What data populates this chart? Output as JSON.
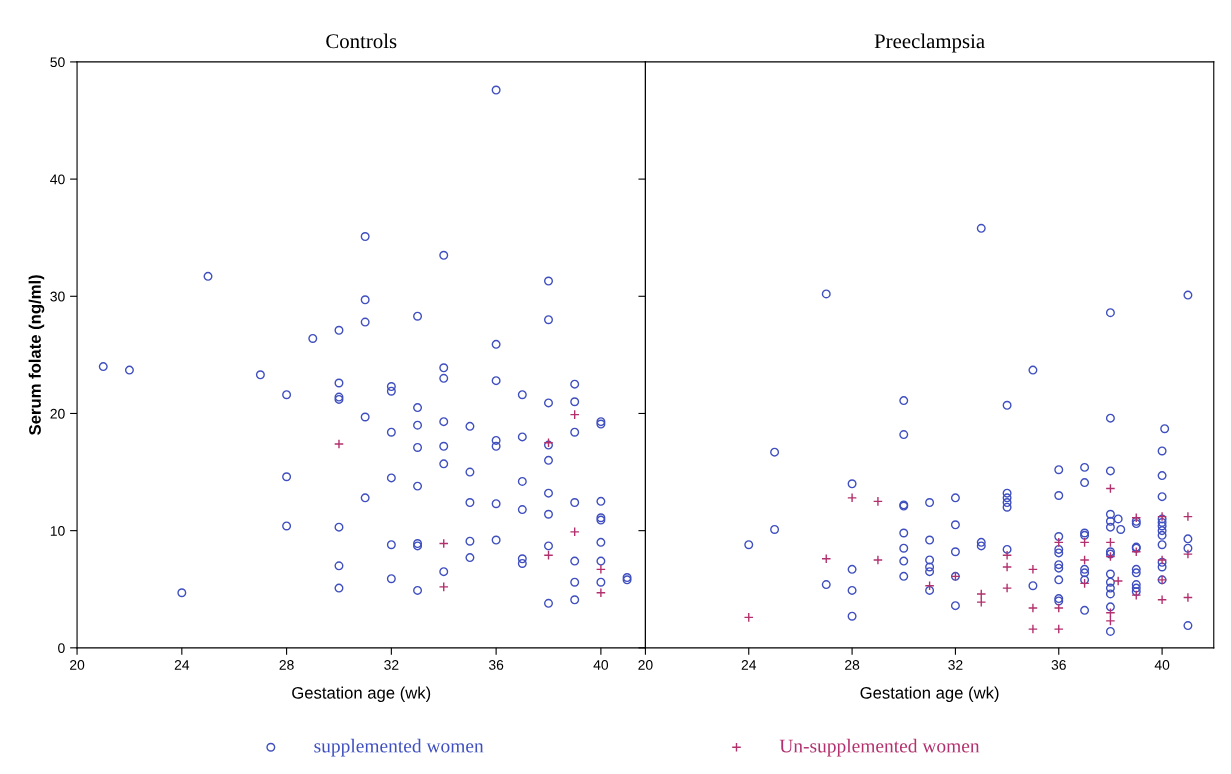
{
  "chart_data": [
    {
      "type": "scatter",
      "title": "Controls",
      "xlabel": "Gestation age (wk)",
      "ylabel": "Serum folate (ng/ml)",
      "xlim": [
        20,
        41.7
      ],
      "ylim": [
        0,
        50
      ],
      "xticks": [
        20,
        24,
        28,
        32,
        36,
        40
      ],
      "yticks": [
        0,
        10,
        20,
        30,
        40,
        50
      ],
      "grid": false,
      "legend": "bottom",
      "series": [
        {
          "name": "supplemented women",
          "color": "#3f4fbf",
          "marker": "circle",
          "x": [
            21,
            22,
            24,
            25,
            27,
            28,
            28,
            28,
            29,
            30,
            30,
            30,
            30,
            30,
            30,
            30,
            31,
            31,
            31,
            31,
            31,
            32,
            32,
            32,
            32,
            32,
            32,
            33,
            33,
            33,
            33,
            33,
            33,
            33,
            33,
            34,
            34,
            34,
            34,
            34,
            34,
            34,
            35,
            35,
            35,
            35,
            35,
            36,
            36,
            36,
            36,
            36,
            36,
            36,
            37,
            37,
            37,
            37,
            37,
            37,
            38,
            38,
            38,
            38,
            38,
            38,
            38,
            38,
            38,
            39,
            39,
            39,
            39,
            39,
            39,
            39,
            40,
            40,
            40,
            40,
            40,
            40,
            40,
            40,
            41,
            41
          ],
          "values": [
            24.0,
            23.7,
            4.7,
            31.7,
            23.3,
            21.6,
            14.6,
            10.4,
            26.4,
            27.1,
            22.6,
            21.4,
            21.2,
            10.3,
            7.0,
            5.1,
            35.1,
            29.7,
            27.8,
            19.7,
            12.8,
            22.3,
            21.9,
            18.4,
            14.5,
            8.8,
            5.9,
            28.3,
            20.5,
            19.0,
            17.1,
            13.8,
            8.9,
            8.7,
            4.9,
            33.5,
            23.9,
            23.0,
            19.3,
            17.2,
            15.7,
            6.5,
            18.9,
            15.0,
            12.4,
            9.1,
            7.7,
            47.6,
            25.9,
            22.8,
            17.7,
            17.2,
            12.3,
            9.2,
            21.6,
            18.0,
            14.2,
            11.8,
            7.6,
            7.2,
            31.3,
            28.0,
            20.9,
            17.3,
            16.0,
            13.2,
            11.4,
            8.7,
            3.8,
            22.5,
            21.0,
            18.4,
            12.4,
            7.4,
            5.6,
            4.1,
            19.3,
            19.1,
            12.5,
            11.1,
            10.9,
            9.0,
            7.4,
            5.6,
            6.0,
            5.8
          ]
        },
        {
          "name": "Un-supplemented women",
          "color": "#b3306e",
          "marker": "cross",
          "x": [
            30,
            34,
            34,
            38,
            38,
            39,
            39,
            40,
            40
          ],
          "values": [
            17.4,
            8.9,
            5.2,
            17.5,
            7.9,
            19.9,
            9.9,
            6.7,
            4.7
          ]
        }
      ]
    },
    {
      "type": "scatter",
      "title": "Preeclampsia",
      "xlabel": "Gestation age (wk)",
      "xlim": [
        20,
        42
      ],
      "ylim": [
        0,
        50
      ],
      "xticks": [
        20,
        24,
        28,
        32,
        36,
        40
      ],
      "yticks": [
        0,
        10,
        20,
        30,
        40
      ],
      "tick_labels": "x",
      "grid": false,
      "series": [
        {
          "name": "supplemented women",
          "color": "#3f4fbf",
          "marker": "circle",
          "x": [
            24,
            25,
            25,
            27,
            27,
            28,
            28,
            28,
            28,
            30,
            30,
            30,
            30,
            30,
            30,
            30,
            30,
            31,
            31,
            31,
            31,
            31,
            31,
            32,
            32,
            32,
            32,
            32,
            33,
            33,
            33,
            34,
            34,
            34,
            34,
            34,
            34,
            35,
            35,
            36,
            36,
            36,
            36,
            36,
            36,
            36,
            36,
            36,
            36,
            37,
            37,
            37,
            37,
            37,
            37,
            37,
            37,
            38,
            38,
            38,
            38,
            38,
            38,
            38,
            38,
            38,
            38,
            38,
            38,
            38,
            38,
            38.3,
            38.4,
            39,
            39,
            39,
            39,
            39,
            39,
            39,
            39,
            39,
            40.1,
            40,
            40,
            40,
            40,
            40,
            40,
            40,
            40,
            40,
            40,
            40,
            40,
            41,
            41,
            41,
            41
          ],
          "values": [
            8.8,
            16.7,
            10.1,
            30.2,
            5.4,
            14.0,
            6.7,
            4.9,
            2.7,
            21.1,
            18.2,
            12.2,
            12.1,
            9.8,
            8.5,
            7.4,
            6.1,
            12.4,
            9.2,
            7.5,
            6.9,
            6.5,
            4.9,
            12.8,
            10.5,
            8.2,
            6.1,
            3.6,
            35.8,
            9.0,
            8.7,
            20.7,
            13.2,
            12.8,
            12.4,
            12.0,
            8.4,
            23.7,
            5.3,
            15.2,
            13.0,
            9.5,
            8.4,
            8.1,
            7.1,
            6.8,
            5.8,
            4.2,
            4.0,
            15.4,
            14.1,
            9.8,
            9.6,
            6.7,
            6.4,
            5.8,
            3.2,
            28.6,
            19.6,
            15.1,
            11.4,
            10.8,
            10.3,
            8.2,
            8.0,
            6.3,
            5.6,
            5.1,
            4.6,
            3.5,
            1.4,
            11.0,
            10.1,
            10.8,
            10.6,
            8.6,
            8.5,
            6.7,
            6.4,
            5.4,
            5.1,
            4.8,
            18.7,
            16.8,
            14.7,
            12.9,
            11.0,
            10.7,
            10.4,
            10.0,
            9.6,
            8.8,
            7.3,
            6.9,
            5.8,
            30.1,
            9.3,
            8.5,
            1.9
          ]
        },
        {
          "name": "Un-supplemented women",
          "color": "#b3306e",
          "marker": "cross",
          "x": [
            24,
            27,
            28,
            29,
            29,
            31,
            32,
            33,
            33,
            34,
            34,
            34,
            35,
            35,
            35,
            36,
            36,
            36,
            37,
            37,
            37,
            38,
            38,
            38,
            38,
            38,
            38.3,
            39,
            39,
            39,
            40,
            40,
            40,
            40,
            41,
            41,
            41
          ],
          "values": [
            2.6,
            7.6,
            12.8,
            12.5,
            7.5,
            5.3,
            6.1,
            4.6,
            3.9,
            7.9,
            6.9,
            5.1,
            6.7,
            3.4,
            1.6,
            9.0,
            3.4,
            1.6,
            9.0,
            7.5,
            5.5,
            13.6,
            9.0,
            7.8,
            3.0,
            2.3,
            5.7,
            11.1,
            8.2,
            4.5,
            11.2,
            7.5,
            5.8,
            4.1,
            11.2,
            8.0,
            4.3
          ]
        }
      ]
    }
  ]
}
